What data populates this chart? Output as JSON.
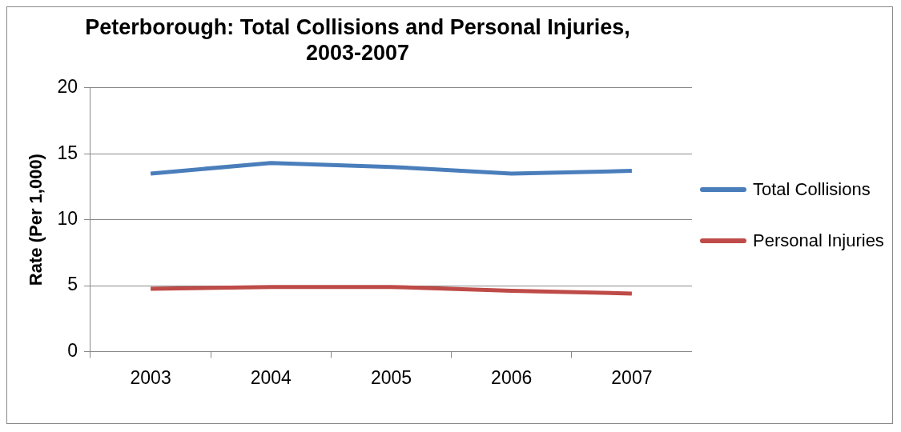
{
  "chart_data": {
    "type": "line",
    "title": [
      "Peterborough: Total Collisions and Personal Injuries,",
      "2003-2007"
    ],
    "ylabel": "Rate (Per 1,000)",
    "categories": [
      "2003",
      "2004",
      "2005",
      "2006",
      "2007"
    ],
    "series": [
      {
        "name": "Total Collisions",
        "color": "#4a7ebb",
        "values": [
          13.5,
          14.3,
          14.0,
          13.5,
          13.7
        ]
      },
      {
        "name": "Personal Injuries",
        "color": "#be4b48",
        "values": [
          4.75,
          4.9,
          4.9,
          4.6,
          4.4
        ]
      }
    ],
    "ylim": [
      0,
      20
    ],
    "yticks": [
      0,
      5,
      10,
      15,
      20
    ],
    "grid": "y",
    "legend": "right",
    "marker": "none"
  }
}
